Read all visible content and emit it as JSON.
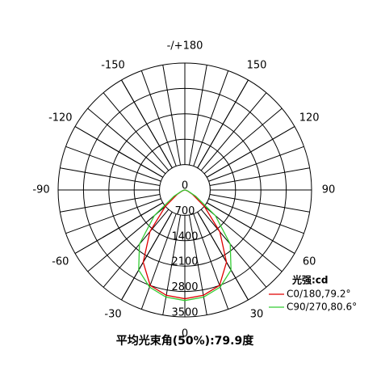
{
  "chart_data": {
    "type": "polar",
    "title": "平均光束角(50%):79.9度",
    "legend_title": "光强:cd",
    "x": [
      -90,
      -80,
      -70,
      -60,
      -50,
      -40,
      -30,
      -20,
      -10,
      0,
      10,
      20,
      30,
      40,
      50,
      60,
      70,
      80,
      90
    ],
    "series": [
      {
        "name": "C0/180,79.2°",
        "color": "#e00000",
        "values": [
          0,
          20,
          80,
          250,
          700,
          1500,
          2300,
          2800,
          2950,
          3000,
          2950,
          2800,
          2300,
          1500,
          700,
          250,
          80,
          20,
          0
        ]
      },
      {
        "name": "C90/270,80.6°",
        "color": "#33cc33",
        "values": [
          0,
          30,
          100,
          350,
          1100,
          1950,
          2550,
          2850,
          3000,
          3050,
          3000,
          2850,
          2550,
          1950,
          1100,
          350,
          100,
          30,
          0
        ]
      }
    ],
    "rlim": [
      0,
      3500
    ],
    "rticks": [
      0,
      700,
      1400,
      2100,
      2800,
      3500
    ],
    "xticks": [
      0,
      30,
      60,
      90,
      120,
      150,
      {
        "value": 180,
        "label": "-/+180"
      },
      -150,
      -120,
      -90,
      -60,
      -30
    ],
    "legend": "lower-right"
  }
}
